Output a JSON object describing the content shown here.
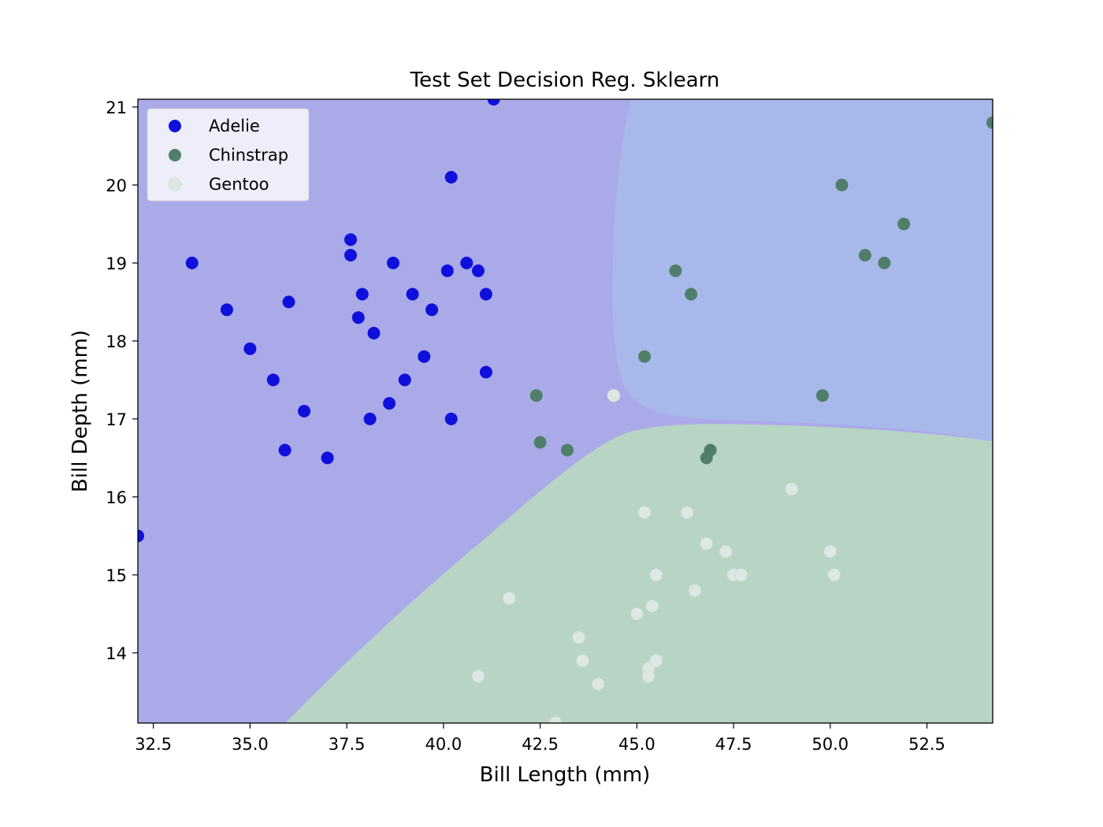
{
  "chart_data": {
    "type": "scatter",
    "title": "Test Set Decision Reg. Sklearn",
    "xlabel": "Bill Length (mm)",
    "ylabel": "Bill Depth (mm)",
    "xlim": [
      32.1,
      54.2
    ],
    "ylim": [
      13.1,
      21.1
    ],
    "xticks": [
      "32.5",
      "35.0",
      "37.5",
      "40.0",
      "42.5",
      "45.0",
      "47.5",
      "50.0",
      "52.5"
    ],
    "xtick_values": [
      32.5,
      35.0,
      37.5,
      40.0,
      42.5,
      45.0,
      47.5,
      50.0,
      52.5
    ],
    "yticks": [
      "14",
      "15",
      "16",
      "17",
      "18",
      "19",
      "20",
      "21"
    ],
    "ytick_values": [
      14,
      15,
      16,
      17,
      18,
      19,
      20,
      21
    ],
    "grid": false,
    "legend_position": "top-left",
    "regions": [
      {
        "class": "Adelie",
        "color": "#aaaae8"
      },
      {
        "class": "Chinstrap",
        "color": "#a8b8ea"
      },
      {
        "class": "Gentoo",
        "color": "#b8d4c4"
      }
    ],
    "series": [
      {
        "name": "Adelie",
        "color": "#1010dd",
        "x": [
          33.5,
          34.4,
          35.0,
          35.6,
          35.9,
          36.0,
          36.4,
          37.0,
          37.6,
          37.6,
          37.8,
          37.9,
          38.1,
          38.2,
          38.6,
          38.7,
          39.0,
          39.2,
          39.5,
          39.7,
          40.1,
          40.2,
          40.2,
          40.6,
          40.9,
          41.1,
          41.1,
          41.3,
          32.1
        ],
        "y": [
          19.0,
          18.4,
          17.9,
          17.5,
          16.6,
          18.5,
          17.1,
          16.5,
          19.3,
          19.1,
          18.3,
          18.6,
          17.0,
          18.1,
          17.2,
          19.0,
          17.5,
          18.6,
          17.8,
          18.4,
          18.9,
          20.1,
          17.0,
          19.0,
          18.9,
          18.6,
          17.6,
          21.1,
          15.5
        ]
      },
      {
        "name": "Chinstrap",
        "color": "#4f7f6a",
        "x": [
          42.4,
          42.5,
          43.2,
          45.2,
          46.0,
          46.4,
          46.8,
          46.9,
          49.8,
          50.3,
          50.9,
          51.4,
          51.9,
          54.2
        ],
        "y": [
          17.3,
          16.7,
          16.6,
          17.8,
          18.9,
          18.6,
          16.5,
          16.6,
          17.3,
          20.0,
          19.1,
          19.0,
          19.5,
          20.8
        ]
      },
      {
        "name": "Gentoo",
        "color": "#dde8e2",
        "x": [
          40.9,
          41.7,
          42.9,
          43.5,
          43.6,
          44.0,
          44.4,
          45.0,
          45.2,
          45.3,
          45.3,
          45.4,
          45.5,
          45.5,
          46.3,
          46.5,
          46.8,
          47.3,
          47.5,
          47.7,
          49.0,
          50.0,
          50.1
        ],
        "y": [
          13.7,
          14.7,
          13.1,
          14.2,
          13.9,
          13.6,
          17.3,
          14.5,
          15.8,
          13.8,
          13.7,
          14.6,
          15.0,
          13.9,
          15.8,
          14.8,
          15.4,
          15.3,
          15.0,
          15.0,
          16.1,
          15.3,
          15.0
        ]
      }
    ]
  }
}
